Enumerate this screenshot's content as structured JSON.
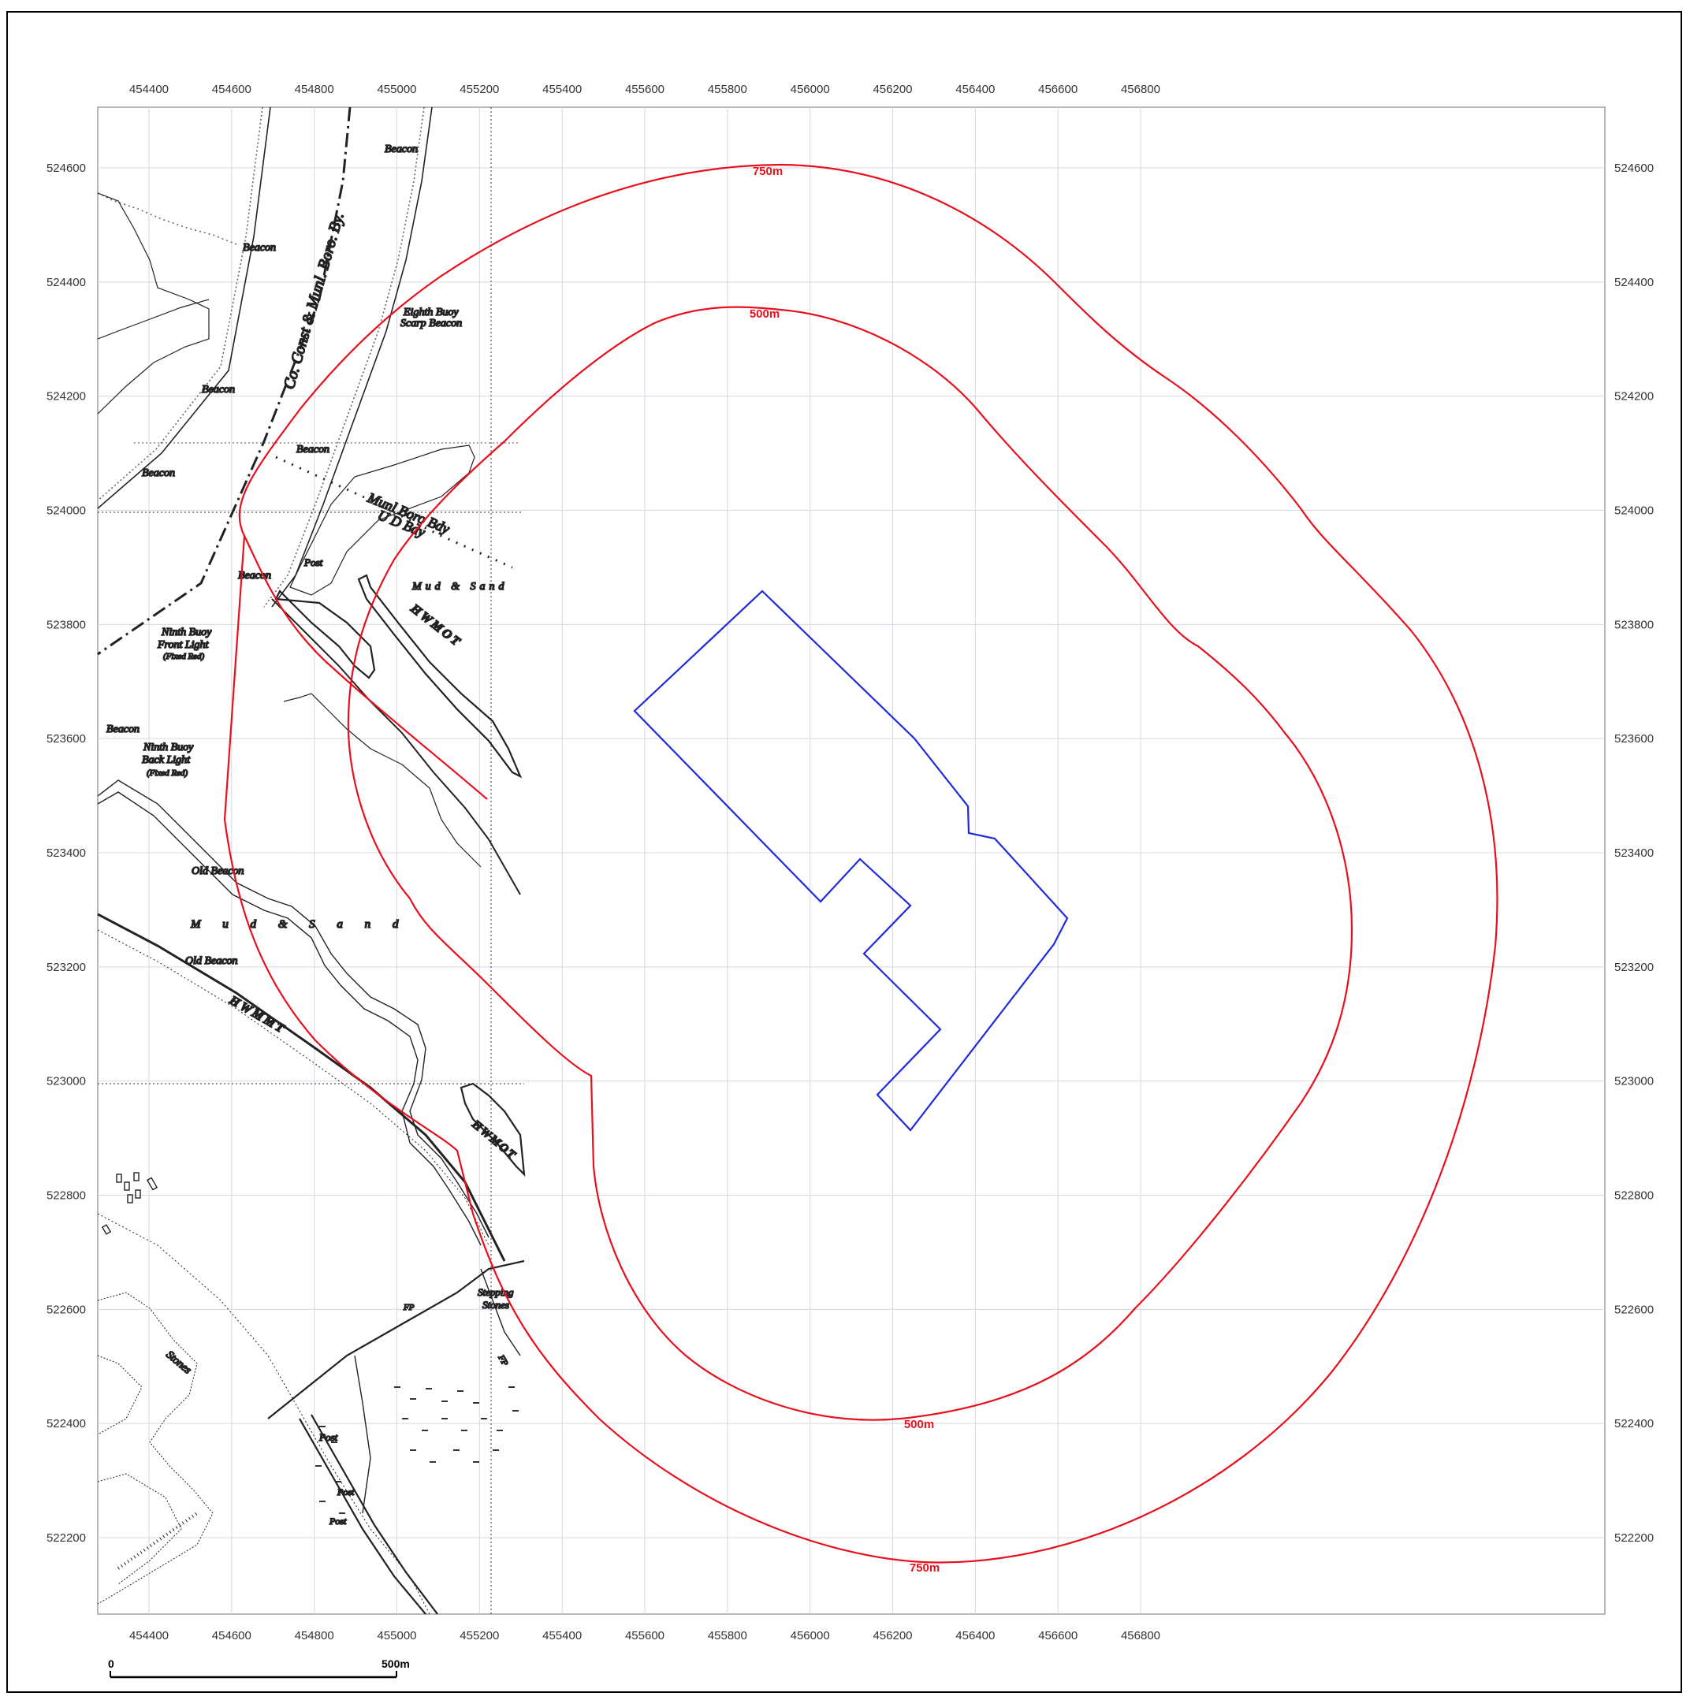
{
  "map": {
    "eastings": [
      454400,
      454600,
      454800,
      455000,
      455200,
      455400,
      455600,
      455800,
      456000,
      456200,
      456400,
      456600,
      456800
    ],
    "northings": [
      524600,
      524400,
      524200,
      524000,
      523800,
      523600,
      523400,
      523200,
      523000,
      522800,
      522600,
      522400,
      522200
    ],
    "buffers": [
      {
        "distance_label": "750m",
        "color": "#e8101c"
      },
      {
        "distance_label": "500m",
        "color": "#e8101c"
      }
    ],
    "site_boundary_color": "#1f2ad8",
    "scale_bar": {
      "start_label": "0",
      "end_label": "500m"
    },
    "basemap_labels": {
      "beacon": "Beacon",
      "eighth_buoy": "Eighth Buoy",
      "scarp_beacon": "Scarp Beacon",
      "boundary_county": "Co. Const & Munl. Boro. By.",
      "boundary_munl": "Munl Boro Bdy",
      "boundary_ud": "U D Bdy",
      "post": "Post",
      "mud_sand": "Mud & Sand",
      "mud_sand_spaced": "M u d  &  S a n d",
      "hwmot": "HWMOT",
      "hwmmt": "HWMMT",
      "ninth_buoy": "Ninth Buoy",
      "front_light": "Front Light",
      "back_light": "Back Light",
      "fixed_red": "(Fixed Red)",
      "old_beacon": "Old Beacon",
      "stepping": "Stepping",
      "stones": "Stones",
      "fp": "FP"
    }
  }
}
